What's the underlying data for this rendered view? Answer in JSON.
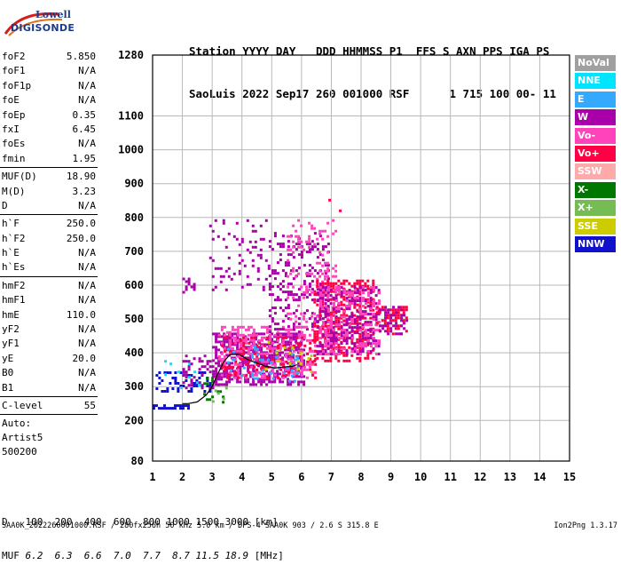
{
  "logo": {
    "line1": "Lowell",
    "line2": "DIGISONDE"
  },
  "header": {
    "line1": "Station YYYY DAY   DDD HHMMSS P1  FFS S AXN PPS IGA PS",
    "line2": "SaoLuis 2022 Sep17 260 001000 RSF      1 715 100 00- 11"
  },
  "params_group1": [
    {
      "name": "foF2",
      "value": "5.850"
    },
    {
      "name": "foF1",
      "value": "N/A"
    },
    {
      "name": "foF1p",
      "value": "N/A"
    },
    {
      "name": "foE",
      "value": "N/A"
    },
    {
      "name": "foEp",
      "value": "0.35"
    },
    {
      "name": "fxI",
      "value": "6.45"
    },
    {
      "name": "foEs",
      "value": "N/A"
    },
    {
      "name": "fmin",
      "value": "1.95"
    }
  ],
  "params_group2": [
    {
      "name": "MUF(D)",
      "value": "18.90"
    },
    {
      "name": "M(D)",
      "value": "3.23"
    },
    {
      "name": "D",
      "value": "N/A"
    }
  ],
  "params_group3": [
    {
      "name": "h`F",
      "value": "250.0"
    },
    {
      "name": "h`F2",
      "value": "250.0"
    },
    {
      "name": "h`E",
      "value": "N/A"
    },
    {
      "name": "h`Es",
      "value": "N/A"
    }
  ],
  "params_group4": [
    {
      "name": "hmF2",
      "value": "N/A"
    },
    {
      "name": "hmF1",
      "value": "N/A"
    },
    {
      "name": "hmE",
      "value": "110.0"
    },
    {
      "name": "yF2",
      "value": "N/A"
    },
    {
      "name": "yF1",
      "value": "N/A"
    },
    {
      "name": "yE",
      "value": "20.0"
    },
    {
      "name": "B0",
      "value": "N/A"
    },
    {
      "name": "B1",
      "value": "N/A"
    }
  ],
  "params_group5": [
    {
      "name": "C-level",
      "value": "55"
    }
  ],
  "autoscaling": {
    "line1": "Auto:",
    "line2": "Artist5",
    "line3": "500200"
  },
  "legend": [
    {
      "label": "NoVal",
      "color": "#a0a0a0"
    },
    {
      "label": "NNE",
      "color": "#00e5ff"
    },
    {
      "label": "E",
      "color": "#33aaff"
    },
    {
      "label": "W",
      "color": "#aa00aa"
    },
    {
      "label": "Vo-",
      "color": "#ff44bb"
    },
    {
      "label": "Vo+",
      "color": "#ff0044"
    },
    {
      "label": "SSW",
      "color": "#ffaaaa"
    },
    {
      "label": "X-",
      "color": "#007700"
    },
    {
      "label": "X+",
      "color": "#77bb55"
    },
    {
      "label": "SSE",
      "color": "#cccc00"
    },
    {
      "label": "NNW",
      "color": "#1111cc"
    }
  ],
  "chart_data": {
    "type": "scatter",
    "title": "",
    "xlabel": "",
    "ylabel": "",
    "xlim": [
      1,
      15
    ],
    "ylim": [
      80,
      1280
    ],
    "x_ticks": [
      "1",
      "2",
      "3",
      "4",
      "5",
      "6",
      "7",
      "8",
      "9",
      "10",
      "11",
      "12",
      "13",
      "14",
      "15"
    ],
    "y_ticks": [
      "80",
      "200",
      "300",
      "400",
      "500",
      "600",
      "700",
      "800",
      "900",
      "1000",
      "1100",
      "1280"
    ],
    "grid": true,
    "legend_position": "right",
    "trace": {
      "name": "",
      "x": [
        2.0,
        2.2,
        2.5,
        2.8,
        3.0,
        3.2,
        3.4,
        3.6,
        3.9,
        4.2,
        4.5,
        4.8,
        5.1,
        5.4,
        5.7,
        5.85
      ],
      "y": [
        250,
        250,
        255,
        275,
        300,
        340,
        375,
        395,
        395,
        380,
        370,
        360,
        355,
        358,
        360,
        365
      ]
    },
    "clusters": [
      {
        "color": "#1111cc",
        "x": [
          1.1,
          2.9
        ],
        "y": [
          290,
          350
        ],
        "density": 0.35
      },
      {
        "color": "#1111cc",
        "x": [
          1.0,
          2.2
        ],
        "y": [
          240,
          255
        ],
        "density": 0.7
      },
      {
        "color": "#00e5ff",
        "x": [
          1.3,
          2.6
        ],
        "y": [
          300,
          380
        ],
        "density": 0.08
      },
      {
        "color": "#aa00aa",
        "x": [
          2.0,
          3.0
        ],
        "y": [
          300,
          400
        ],
        "density": 0.25
      },
      {
        "color": "#007700",
        "x": [
          2.7,
          3.5
        ],
        "y": [
          250,
          330
        ],
        "density": 0.2
      },
      {
        "color": "#77bb55",
        "x": [
          2.9,
          3.6
        ],
        "y": [
          260,
          320
        ],
        "density": 0.15
      },
      {
        "color": "#aa00aa",
        "x": [
          3.0,
          6.1
        ],
        "y": [
          310,
          460
        ],
        "density": 0.55
      },
      {
        "color": "#ff44bb",
        "x": [
          3.2,
          6.5
        ],
        "y": [
          330,
          480
        ],
        "density": 0.35
      },
      {
        "color": "#ff0044",
        "x": [
          3.3,
          6.5
        ],
        "y": [
          330,
          450
        ],
        "density": 0.2
      },
      {
        "color": "#33aaff",
        "x": [
          3.5,
          6.0
        ],
        "y": [
          320,
          430
        ],
        "density": 0.1
      },
      {
        "color": "#cccc00",
        "x": [
          4.5,
          6.5
        ],
        "y": [
          340,
          440
        ],
        "density": 0.08
      },
      {
        "color": "#aa00aa",
        "x": [
          2.9,
          4.9
        ],
        "y": [
          590,
          800
        ],
        "density": 0.12
      },
      {
        "color": "#aa00aa",
        "x": [
          4.9,
          6.9
        ],
        "y": [
          450,
          760
        ],
        "density": 0.2
      },
      {
        "color": "#ff44bb",
        "x": [
          5.5,
          7.2
        ],
        "y": [
          480,
          800
        ],
        "density": 0.15
      },
      {
        "color": "#ff0044",
        "x": [
          6.4,
          8.4
        ],
        "y": [
          380,
          620
        ],
        "density": 0.4
      },
      {
        "color": "#aa00aa",
        "x": [
          6.5,
          8.6
        ],
        "y": [
          400,
          600
        ],
        "density": 0.35
      },
      {
        "color": "#ff44bb",
        "x": [
          6.6,
          8.6
        ],
        "y": [
          400,
          600
        ],
        "density": 0.3
      },
      {
        "color": "#ff0044",
        "x": [
          8.5,
          9.5
        ],
        "y": [
          460,
          540
        ],
        "density": 0.45
      },
      {
        "color": "#aa00aa",
        "x": [
          8.6,
          9.5
        ],
        "y": [
          460,
          540
        ],
        "density": 0.3
      },
      {
        "color": "#aa00aa",
        "x": [
          2.0,
          2.4
        ],
        "y": [
          575,
          630
        ],
        "density": 0.25
      },
      {
        "color": "#ff0044",
        "x": [
          6.9,
          7.3
        ],
        "y": [
          800,
          960
        ],
        "density": 0.05
      }
    ]
  },
  "footer": {
    "d_label": "D",
    "d_values": "100  200  400  600  800 1000 1500 3000 [km]",
    "muf_label": "MUF",
    "muf_values": "6.2  6.3  6.6  7.0  7.7  8.7 11.5 18.9",
    "muf_unit": "[MHz]",
    "file_info": "SAA0K_2022260001000.RSF / 280fx256h 50 kHz 5.0 km / DPS-4 SAA0K 903 / 2.6 S 315.8 E",
    "version": "Ion2Png 1.3.17"
  }
}
